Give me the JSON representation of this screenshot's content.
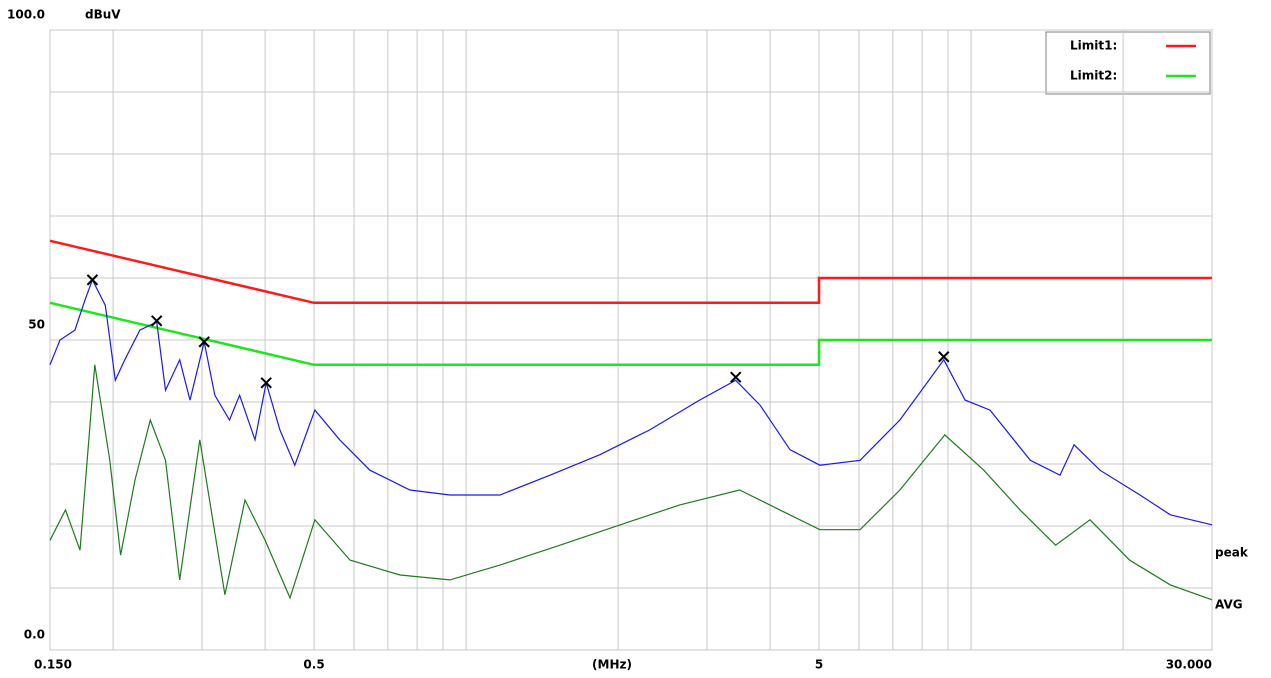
{
  "chart_data": {
    "type": "line",
    "x_scale": "log",
    "grid": true,
    "ylabel": "dBuV",
    "xlabel": "(MHz)",
    "xlim": [
      0.15,
      30
    ],
    "ylim": [
      0,
      100
    ],
    "xticks": [
      {
        "value": 0.15,
        "label": "0.150"
      },
      0.5,
      5,
      {
        "value": 30,
        "label": "30.000"
      }
    ],
    "xgrid": [
      0.2,
      0.3,
      0.4,
      0.6,
      0.7,
      0.8,
      0.9,
      1,
      2,
      3,
      4,
      6,
      7,
      8,
      9,
      10,
      20
    ],
    "yticks": [
      {
        "value": 0,
        "label": "0.0"
      },
      50,
      {
        "value": 100,
        "label": "100.0"
      }
    ],
    "ygrid": [
      10,
      20,
      30,
      40,
      60,
      70,
      80,
      90
    ],
    "series": [
      {
        "name": "Limit1:",
        "color": "#ff1a1a",
        "legend": true,
        "x": [
          0.15,
          0.5,
          5,
          5,
          30
        ],
        "values": [
          66,
          56,
          56,
          60,
          60
        ]
      },
      {
        "name": "Limit2:",
        "color": "#1ee61e",
        "legend": true,
        "x": [
          0.15,
          0.5,
          5,
          5,
          30
        ],
        "values": [
          56,
          46,
          46,
          50,
          50
        ]
      },
      {
        "name": "peak",
        "color": "#1a1aee",
        "legend": false,
        "label_color": "#000000",
        "x": [
          0.15,
          0.157,
          0.168,
          0.176,
          0.182,
          0.193,
          0.202,
          0.211,
          0.226,
          0.244,
          0.254,
          0.271,
          0.284,
          0.303,
          0.318,
          0.34,
          0.356,
          0.382,
          0.402,
          0.428,
          0.458,
          0.502,
          0.562,
          0.645,
          0.774,
          0.929,
          1.167,
          1.466,
          1.841,
          2.31,
          2.9,
          3.42,
          3.82,
          4.38,
          5.02,
          6.03,
          7.23,
          8.83,
          9.73,
          10.9,
          13.1,
          15.0,
          16.0,
          18.0,
          21.6,
          24.8,
          30.0
        ],
        "values": [
          46.0,
          50.0,
          51.6,
          56.5,
          59.7,
          55.6,
          43.5,
          46.8,
          51.6,
          52.9,
          41.9,
          46.8,
          40.3,
          49.7,
          41.1,
          37.1,
          41.1,
          33.9,
          43.1,
          35.5,
          29.8,
          38.7,
          33.9,
          29.0,
          25.8,
          25.0,
          25.0,
          28.2,
          31.5,
          35.5,
          40.3,
          43.5,
          39.5,
          32.3,
          29.8,
          30.6,
          37.1,
          46.8,
          40.3,
          38.7,
          30.6,
          28.2,
          33.1,
          29.0,
          25.0,
          21.8,
          20.2
        ]
      },
      {
        "name": "AVG",
        "color": "#1f7a1f",
        "legend": false,
        "label_color": "#1f7a1f",
        "x": [
          0.15,
          0.161,
          0.172,
          0.184,
          0.197,
          0.207,
          0.221,
          0.237,
          0.254,
          0.271,
          0.297,
          0.333,
          0.365,
          0.4,
          0.448,
          0.502,
          0.589,
          0.74,
          0.929,
          1.167,
          1.535,
          2.02,
          2.65,
          3.48,
          4.18,
          5.02,
          6.03,
          7.23,
          8.87,
          10.6,
          12.5,
          14.7,
          17.2,
          20.6,
          24.8,
          30.0
        ],
        "values": [
          17.7,
          22.6,
          16.1,
          46.0,
          30.6,
          15.3,
          27.4,
          37.1,
          30.6,
          11.3,
          33.9,
          8.9,
          24.2,
          17.7,
          8.4,
          21.0,
          14.5,
          12.1,
          11.3,
          13.7,
          16.9,
          20.2,
          23.4,
          25.8,
          22.6,
          19.4,
          19.4,
          25.8,
          34.7,
          29.0,
          22.6,
          16.9,
          21.0,
          14.5,
          10.5,
          8.1
        ]
      }
    ],
    "markers": {
      "x": [
        0.182,
        0.244,
        0.303,
        0.402,
        3.42,
        8.83
      ],
      "values": [
        59.7,
        53.1,
        49.7,
        43.1,
        44.0,
        47.3
      ]
    }
  }
}
